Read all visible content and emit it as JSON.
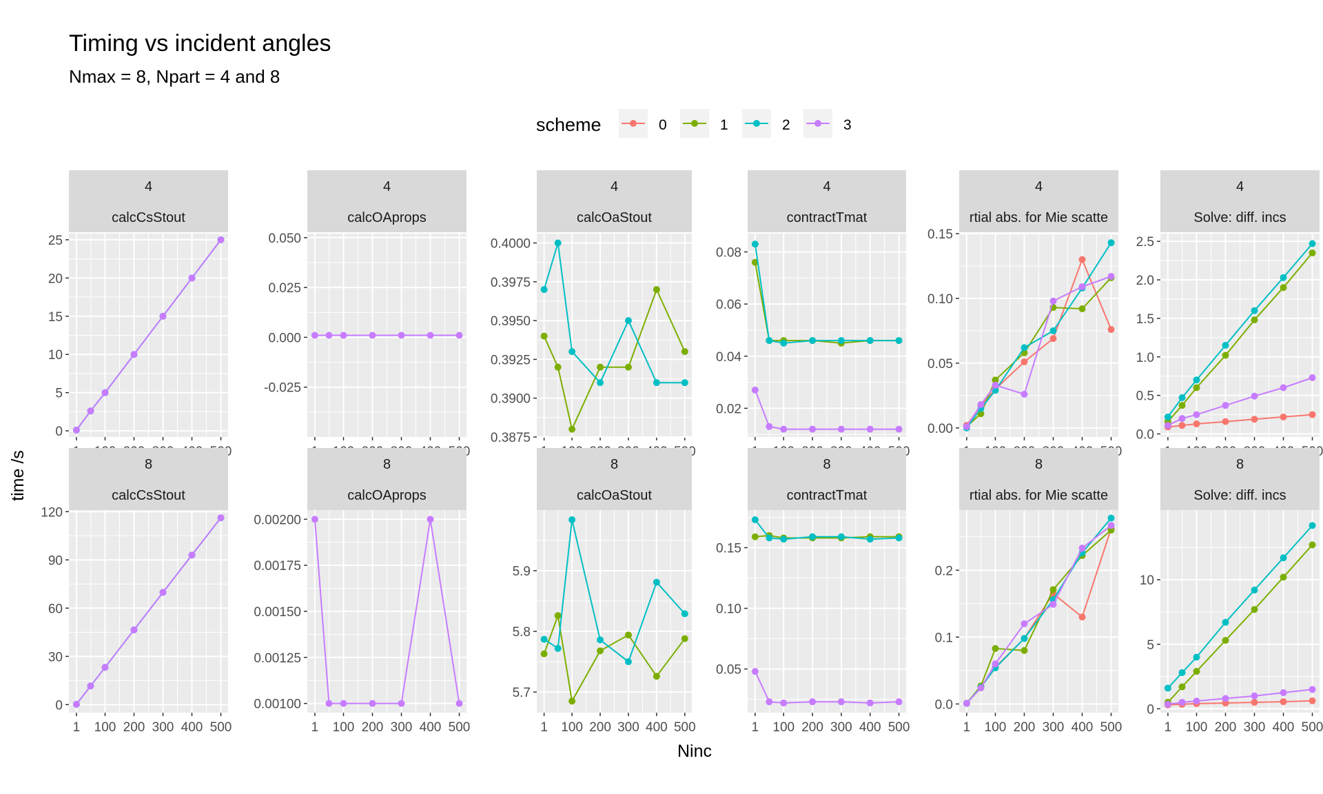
{
  "title": "Timing vs incident angles",
  "subtitle": "Nmax = 8, Npart = 4 and 8",
  "chart_data": {
    "type": "line",
    "title": "Timing vs incident angles",
    "subtitle": "Nmax = 8, Npart = 4 and 8",
    "xlabel": "Ninc",
    "ylabel": "time /s",
    "legend": {
      "title": "scheme",
      "position": "top",
      "entries": [
        "0",
        "1",
        "2",
        "3"
      ]
    },
    "colors": {
      "0": "#F8766D",
      "1": "#7CAE00",
      "2": "#00BFC4",
      "3": "#C77CFF"
    },
    "x": [
      1,
      50,
      100,
      200,
      300,
      400,
      500
    ],
    "x_ticks": [
      1,
      100,
      200,
      300,
      400,
      500
    ],
    "x_tick_labels": [
      "1",
      "100",
      "200",
      "300",
      "400",
      "500"
    ],
    "grid": true,
    "facet_rows": [
      "4",
      "8"
    ],
    "facet_cols": [
      "calcCsStout",
      "calcOAprops",
      "calcOaStout",
      "contractTmat",
      "rtial abs. for Mie scatte",
      "Solve: diff. incs"
    ],
    "panels": [
      {
        "row": "4",
        "col": "calcCsStout",
        "ylim": [
          -0.8,
          25.8
        ],
        "yticks": [
          0,
          5,
          10,
          15,
          20,
          25
        ],
        "ytick_labels": [
          "0",
          "5",
          "10",
          "15",
          "20",
          "25"
        ],
        "series": [
          {
            "scheme": "2",
            "values": [
              0.1,
              2.6,
              5.0,
              10.0,
              15.0,
              20.0,
              25.0
            ]
          },
          {
            "scheme": "3",
            "values": [
              0.1,
              2.6,
              5.0,
              10.0,
              15.0,
              20.0,
              25.0
            ]
          }
        ]
      },
      {
        "row": "4",
        "col": "calcOAprops",
        "ylim": [
          -0.05,
          0.052
        ],
        "yticks": [
          -0.025,
          0.0,
          0.025,
          0.05
        ],
        "ytick_labels": [
          "-0.025",
          "0.000",
          "0.025",
          "0.050"
        ],
        "series": [
          {
            "scheme": "3",
            "values": [
              0.001,
              0.001,
              0.001,
              0.001,
              0.001,
              0.001,
              0.001
            ]
          }
        ]
      },
      {
        "row": "4",
        "col": "calcOaStout",
        "ylim": [
          0.3875,
          0.4006
        ],
        "yticks": [
          0.3875,
          0.39,
          0.3925,
          0.395,
          0.3975,
          0.4
        ],
        "ytick_labels": [
          "0.3875",
          "0.3900",
          "0.3925",
          "0.3950",
          "0.3975",
          "0.4000"
        ],
        "series": [
          {
            "scheme": "1",
            "values": [
              0.394,
              0.392,
              0.388,
              0.392,
              0.392,
              0.397,
              0.393
            ]
          },
          {
            "scheme": "2",
            "values": [
              0.397,
              0.4,
              0.393,
              0.391,
              0.395,
              0.391,
              0.391
            ]
          }
        ]
      },
      {
        "row": "4",
        "col": "contractTmat",
        "ylim": [
          0.009,
          0.087
        ],
        "yticks": [
          0.02,
          0.04,
          0.06,
          0.08
        ],
        "ytick_labels": [
          "0.02",
          "0.04",
          "0.06",
          "0.08"
        ],
        "series": [
          {
            "scheme": "1",
            "values": [
              0.076,
              0.046,
              0.046,
              0.046,
              0.045,
              0.046,
              0.046
            ]
          },
          {
            "scheme": "2",
            "values": [
              0.083,
              0.046,
              0.045,
              0.046,
              0.046,
              0.046,
              0.046
            ]
          },
          {
            "scheme": "3",
            "values": [
              0.027,
              0.013,
              0.012,
              0.012,
              0.012,
              0.012,
              0.012
            ]
          }
        ]
      },
      {
        "row": "4",
        "col": "rtial abs. for Mie scatte",
        "ylim": [
          -0.007,
          0.15
        ],
        "yticks": [
          0.0,
          0.05,
          0.1,
          0.15
        ],
        "ytick_labels": [
          "0.00",
          "0.05",
          "0.10",
          "0.15"
        ],
        "series": [
          {
            "scheme": "0",
            "values": [
              0.002,
              0.017,
              0.03,
              0.051,
              0.069,
              0.13,
              0.076
            ]
          },
          {
            "scheme": "1",
            "values": [
              0.001,
              0.011,
              0.037,
              0.058,
              0.093,
              0.092,
              0.116
            ]
          },
          {
            "scheme": "2",
            "values": [
              0.0,
              0.015,
              0.029,
              0.062,
              0.075,
              0.108,
              0.143
            ]
          },
          {
            "scheme": "3",
            "values": [
              0.001,
              0.018,
              0.033,
              0.026,
              0.098,
              0.109,
              0.117
            ]
          }
        ]
      },
      {
        "row": "4",
        "col": "Solve: diff. incs",
        "ylim": [
          -0.04,
          2.6
        ],
        "yticks": [
          0.0,
          0.5,
          1.0,
          1.5,
          2.0,
          2.5
        ],
        "ytick_labels": [
          "0.0",
          "0.5",
          "1.0",
          "1.5",
          "2.0",
          "2.5"
        ],
        "series": [
          {
            "scheme": "0",
            "values": [
              0.09,
              0.11,
              0.13,
              0.16,
              0.19,
              0.22,
              0.25
            ]
          },
          {
            "scheme": "1",
            "values": [
              0.16,
              0.37,
              0.6,
              1.02,
              1.48,
              1.9,
              2.35
            ]
          },
          {
            "scheme": "2",
            "values": [
              0.22,
              0.47,
              0.7,
              1.15,
              1.6,
              2.03,
              2.47
            ]
          },
          {
            "scheme": "3",
            "values": [
              0.11,
              0.2,
              0.25,
              0.37,
              0.49,
              0.6,
              0.73
            ]
          }
        ]
      },
      {
        "row": "8",
        "col": "calcCsStout",
        "ylim": [
          -5,
          121
        ],
        "yticks": [
          0,
          30,
          60,
          90,
          120
        ],
        "ytick_labels": [
          "0",
          "30",
          "60",
          "90",
          "120"
        ],
        "series": [
          {
            "scheme": "2",
            "values": [
              0.2,
              11.6,
              23.2,
              46.5,
              69.8,
              93.0,
              116.2
            ]
          },
          {
            "scheme": "3",
            "values": [
              0.2,
              11.6,
              23.2,
              46.5,
              69.8,
              93.0,
              116.2
            ]
          }
        ]
      },
      {
        "row": "8",
        "col": "calcOAprops",
        "ylim": [
          0.00095,
          0.00205
        ],
        "yticks": [
          0.001,
          0.00125,
          0.0015,
          0.00175,
          0.002
        ],
        "ytick_labels": [
          "0.00100",
          "0.00125",
          "0.00150",
          "0.00175",
          "0.00200"
        ],
        "series": [
          {
            "scheme": "3",
            "values": [
              0.002,
              0.001,
              0.001,
              0.001,
              0.001,
              0.002,
              0.001
            ]
          }
        ]
      },
      {
        "row": "8",
        "col": "calcOaStout",
        "ylim": [
          5.666,
          6.0
        ],
        "yticks": [
          5.7,
          5.8,
          5.9
        ],
        "ytick_labels": [
          "5.7",
          "5.8",
          "5.9"
        ],
        "series": [
          {
            "scheme": "1",
            "values": [
              5.763,
              5.826,
              5.685,
              5.768,
              5.794,
              5.726,
              5.788
            ]
          },
          {
            "scheme": "2",
            "values": [
              5.787,
              5.772,
              5.984,
              5.786,
              5.75,
              5.881,
              5.829
            ]
          }
        ]
      },
      {
        "row": "8",
        "col": "contractTmat",
        "ylim": [
          0.014,
          0.181
        ],
        "yticks": [
          0.05,
          0.1,
          0.15
        ],
        "ytick_labels": [
          "0.05",
          "0.10",
          "0.15"
        ],
        "series": [
          {
            "scheme": "1",
            "values": [
              0.159,
              0.16,
              0.158,
              0.158,
              0.158,
              0.159,
              0.159
            ]
          },
          {
            "scheme": "2",
            "values": [
              0.173,
              0.158,
              0.157,
              0.159,
              0.159,
              0.157,
              0.158
            ]
          },
          {
            "scheme": "3",
            "values": [
              0.048,
              0.023,
              0.022,
              0.023,
              0.023,
              0.022,
              0.023
            ]
          }
        ]
      },
      {
        "row": "8",
        "col": "rtial abs. for Mie scatte",
        "ylim": [
          -0.013,
          0.29
        ],
        "yticks": [
          0.0,
          0.1,
          0.2
        ],
        "ytick_labels": [
          "0.0",
          "0.1",
          "0.2"
        ],
        "series": [
          {
            "scheme": "0",
            "values": [
              0.001,
              0.026,
              0.055,
              0.098,
              0.165,
              0.13,
              0.262
            ]
          },
          {
            "scheme": "1",
            "values": [
              0.001,
              0.027,
              0.083,
              0.08,
              0.171,
              0.222,
              0.26
            ]
          },
          {
            "scheme": "2",
            "values": [
              0.001,
              0.025,
              0.054,
              0.098,
              0.156,
              0.226,
              0.278
            ]
          },
          {
            "scheme": "3",
            "values": [
              0.001,
              0.024,
              0.06,
              0.12,
              0.149,
              0.233,
              0.267
            ]
          }
        ]
      },
      {
        "row": "8",
        "col": "Solve: diff. incs",
        "ylim": [
          -0.3,
          15.4
        ],
        "yticks": [
          0,
          5,
          10
        ],
        "ytick_labels": [
          "0",
          "5",
          "10"
        ],
        "series": [
          {
            "scheme": "0",
            "values": [
              0.3,
              0.35,
              0.4,
              0.45,
              0.5,
              0.55,
              0.62
            ]
          },
          {
            "scheme": "1",
            "values": [
              0.5,
              1.7,
              2.9,
              5.3,
              7.7,
              10.2,
              12.7
            ]
          },
          {
            "scheme": "2",
            "values": [
              1.6,
              2.8,
              4.0,
              6.7,
              9.2,
              11.7,
              14.2
            ]
          },
          {
            "scheme": "3",
            "values": [
              0.35,
              0.5,
              0.6,
              0.8,
              1.0,
              1.25,
              1.5
            ]
          }
        ]
      }
    ]
  }
}
